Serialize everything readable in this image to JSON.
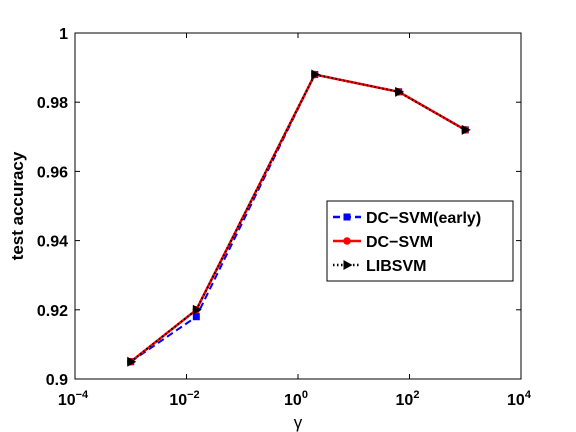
{
  "chart_data": {
    "type": "line",
    "title": "",
    "xlabel": "γ",
    "ylabel": "test accuracy",
    "x_scale": "log",
    "xlim": [
      0.0001,
      10000
    ],
    "ylim": [
      0.9,
      1.0
    ],
    "x_ticks": [
      {
        "value": 0.0001,
        "base": "10",
        "exp": "−4"
      },
      {
        "value": 0.01,
        "base": "10",
        "exp": "−2"
      },
      {
        "value": 1,
        "base": "10",
        "exp": "0"
      },
      {
        "value": 100,
        "base": "10",
        "exp": "2"
      },
      {
        "value": 10000,
        "base": "10",
        "exp": "4"
      }
    ],
    "y_ticks": [
      {
        "value": 0.9,
        "label": "0.9"
      },
      {
        "value": 0.92,
        "label": "0.92"
      },
      {
        "value": 0.94,
        "label": "0.94"
      },
      {
        "value": 0.96,
        "label": "0.96"
      },
      {
        "value": 0.98,
        "label": "0.98"
      },
      {
        "value": 1.0,
        "label": "1"
      }
    ],
    "grid": false,
    "legend_position": "right",
    "series": [
      {
        "name": "DC−SVM(early)",
        "color": "#0000ff",
        "line_style": "dashed",
        "marker": "square",
        "x": [
          0.001,
          0.015,
          2,
          64,
          1000
        ],
        "y": [
          0.905,
          0.918,
          0.988,
          0.983,
          0.972
        ]
      },
      {
        "name": "DC−SVM",
        "color": "#ff0000",
        "line_style": "solid",
        "marker": "circle",
        "x": [
          0.001,
          0.015,
          2,
          64,
          1000
        ],
        "y": [
          0.905,
          0.92,
          0.988,
          0.983,
          0.972
        ]
      },
      {
        "name": "LIBSVM",
        "color": "#000000",
        "line_style": "dotted",
        "marker": "triangle-right",
        "x": [
          0.001,
          0.015,
          2,
          64,
          1000
        ],
        "y": [
          0.905,
          0.92,
          0.988,
          0.983,
          0.972
        ]
      }
    ]
  }
}
